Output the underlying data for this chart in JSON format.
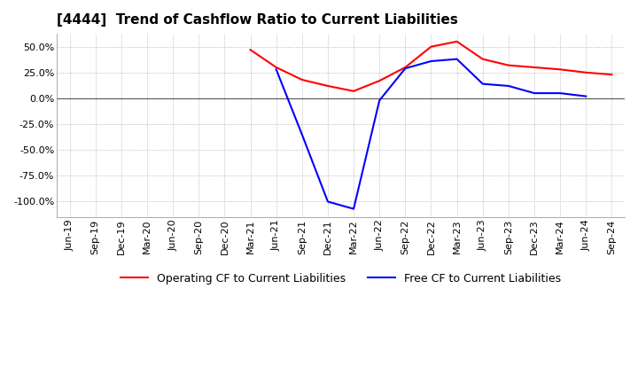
{
  "title": "[4444]  Trend of Cashflow Ratio to Current Liabilities",
  "legend_labels": [
    "Operating CF to Current Liabilities",
    "Free CF to Current Liabilities"
  ],
  "line_colors": [
    "red",
    "blue"
  ],
  "x_labels": [
    "Jun-19",
    "Sep-19",
    "Dec-19",
    "Mar-20",
    "Jun-20",
    "Sep-20",
    "Dec-20",
    "Mar-21",
    "Jun-21",
    "Sep-21",
    "Dec-21",
    "Mar-22",
    "Jun-22",
    "Sep-22",
    "Dec-22",
    "Mar-23",
    "Jun-23",
    "Sep-23",
    "Dec-23",
    "Mar-24",
    "Jun-24",
    "Sep-24"
  ],
  "operating_cf": [
    null,
    null,
    null,
    null,
    null,
    null,
    null,
    47.0,
    30.0,
    18.0,
    12.0,
    7.0,
    17.0,
    30.0,
    50.0,
    55.0,
    38.0,
    32.0,
    30.0,
    28.0,
    25.0,
    23.0
  ],
  "free_cf": [
    null,
    null,
    null,
    null,
    null,
    null,
    null,
    null,
    28.0,
    -35.0,
    -100.0,
    -107.0,
    -2.0,
    29.0,
    36.0,
    38.0,
    14.0,
    12.0,
    5.0,
    5.0,
    2.0,
    null
  ],
  "ylim": [
    -115.0,
    62.5
  ],
  "yticks": [
    -100.0,
    -75.0,
    -50.0,
    -25.0,
    0.0,
    25.0,
    50.0
  ],
  "background_color": "#ffffff",
  "plot_area_color": "#ffffff",
  "title_fontsize": 11,
  "label_fontsize": 8,
  "line_width": 1.5,
  "grid_color": "#aaaaaa",
  "grid_style": ":",
  "zero_line_color": "#555555"
}
